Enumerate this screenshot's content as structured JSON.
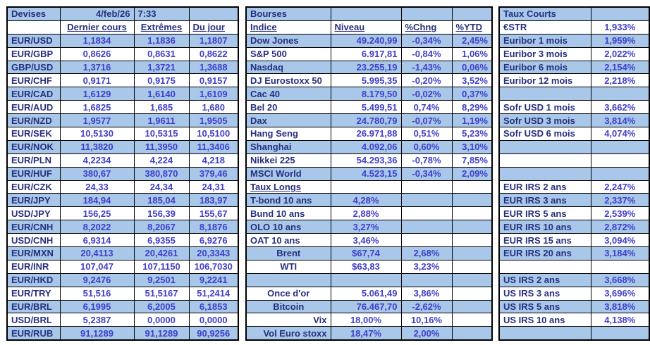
{
  "meta": {
    "date": "4/feb/26",
    "time": "7:33"
  },
  "colors": {
    "band_blue": "#a8c7e9",
    "label_navy": "#262f7e",
    "value_blue": "#3f3fca",
    "border": "#000000"
  },
  "devises": {
    "title": "Devises",
    "headers": [
      "Dernier cours",
      "Extrêmes",
      "Du jour"
    ],
    "rows": [
      [
        {
          "t": "Devises",
          "n": "section-title-devises"
        },
        {
          "t": "4/feb/26",
          "al": "r",
          "n": "date"
        },
        {
          "t": "7:33",
          "al": "l",
          "n": "time"
        },
        ""
      ],
      [
        "",
        {
          "t": "Dernier cours",
          "al": "c",
          "u": 1,
          "n": "col-header"
        },
        {
          "t": "Extrêmes",
          "al": "c",
          "u": 1,
          "n": "col-header"
        },
        {
          "t": "Du jour",
          "al": "l",
          "u": 1,
          "n": "col-header"
        }
      ],
      [
        "EUR/USD",
        "1,1834",
        "1,1836",
        "1,1807"
      ],
      [
        "EUR/GBP",
        "0,8626",
        "0,8631",
        "0,8622"
      ],
      [
        "GBP/USD",
        "1,3716",
        "1,3721",
        "1,3688"
      ],
      [
        "EUR/CHF",
        "0,9171",
        "0,9175",
        "0,9157"
      ],
      [
        "EUR/CAD",
        "1,6129",
        "1,6140",
        "1,6109"
      ],
      [
        "EUR/AUD",
        "1,6825",
        "1,685",
        "1,680"
      ],
      [
        "EUR/NZD",
        "1,9577",
        "1,9611",
        "1,9505"
      ],
      [
        "EUR/SEK",
        "10,5130",
        "10,5315",
        "10,5100"
      ],
      [
        "EUR/NOK",
        "11,3820",
        "11,3950",
        "11,3406"
      ],
      [
        "EUR/PLN",
        "4,2234",
        "4,224",
        "4,218"
      ],
      [
        "EUR/HUF",
        "380,67",
        "380,870",
        "379,46"
      ],
      [
        "EUR/CZK",
        "24,33",
        "24,34",
        "24,31"
      ],
      [
        "EUR/JPY",
        "184,94",
        "185,04",
        "183,97"
      ],
      [
        "USD/JPY",
        "156,25",
        "156,39",
        "155,67"
      ],
      [
        "EUR/CNH",
        "8,2022",
        "8,2067",
        "8,1876"
      ],
      [
        "USD/CNH",
        "6,9314",
        "6,9355",
        "6,9276"
      ],
      [
        "EUR/MXN",
        "20,4113",
        "20,4261",
        "20,3343"
      ],
      [
        "EUR/INR",
        "107,047",
        "107,1150",
        "106,7030"
      ],
      [
        "EUR/HKD",
        "9,2476",
        "9,2501",
        "9,2241"
      ],
      [
        "EUR/TRY",
        "51,516",
        "51,5167",
        "51,2414"
      ],
      [
        "EUR/BRL",
        "6,1995",
        "6,2005",
        "6,1853"
      ],
      [
        "USD/BRL",
        "5,2387",
        "0,0000",
        "0,0000"
      ],
      [
        "EUR/RUB",
        "91,1289",
        "91,1289",
        "90,9256"
      ]
    ]
  },
  "bourses": {
    "title": "Bourses",
    "headers": [
      "Indice",
      "Niveau",
      "%Chng",
      "%YTD"
    ],
    "rows": [
      [
        {
          "t": "Bourses",
          "n": "section-title-bourses"
        },
        "",
        "",
        ""
      ],
      [
        {
          "t": "Indice",
          "u": 1,
          "n": "col-header"
        },
        {
          "t": "Niveau",
          "al": "l",
          "u": 1,
          "n": "col-header"
        },
        {
          "t": "%Chng",
          "al": "l",
          "u": 1,
          "n": "col-header"
        },
        {
          "t": "%YTD",
          "al": "l",
          "u": 1,
          "n": "col-header"
        }
      ],
      [
        "Dow Jones",
        "49.240,99",
        "-0,34%",
        "2,45%"
      ],
      [
        "S&P 500",
        "6.917,81",
        "-0,84%",
        "1,06%"
      ],
      [
        "Nasdaq",
        "23.255,19",
        "-1,43%",
        "0,06%"
      ],
      [
        "DJ Eurostoxx 50",
        "5.995,35",
        "-0,20%",
        "3,52%"
      ],
      [
        "Cac 40",
        "8.179,50",
        "-0,02%",
        "0,37%"
      ],
      [
        "Bel 20",
        "5.499,51",
        "0,74%",
        "8,29%"
      ],
      [
        "Dax",
        "24.780,79",
        "-0,07%",
        "1,19%"
      ],
      [
        "Hang Seng",
        "26.971,88",
        "0,51%",
        "5,23%"
      ],
      [
        "Shanghai",
        "4.092,06",
        "0,60%",
        "3,10%"
      ],
      [
        "Nikkei 225",
        "54.293,36",
        "-0,78%",
        "7,85%"
      ],
      [
        "MSCI World",
        "4.523,15",
        "-0,34%",
        "2,09%"
      ],
      [
        {
          "t": "Taux Longs",
          "u": 1,
          "n": "section-title-taux-longs"
        },
        "",
        "",
        ""
      ],
      [
        "T-bond 10 ans",
        {
          "t": "4,28%",
          "al": "c"
        },
        "",
        ""
      ],
      [
        "Bund 10 ans",
        {
          "t": "2,88%",
          "al": "c"
        },
        "",
        ""
      ],
      [
        "OLO 10 ans",
        {
          "t": "3,27%",
          "al": "c"
        },
        "",
        ""
      ],
      [
        "OAT 10 ans",
        {
          "t": "3,46%",
          "al": "c"
        },
        "",
        ""
      ],
      [
        {
          "t": "Brent",
          "al": "c"
        },
        {
          "t": "$67,74",
          "al": "c"
        },
        "2,68%",
        ""
      ],
      [
        {
          "t": "WTI",
          "al": "c"
        },
        {
          "t": "$63,83",
          "al": "c"
        },
        "3,23%",
        ""
      ],
      [
        "",
        "",
        "",
        ""
      ],
      [
        {
          "t": "Once d'or",
          "al": "c"
        },
        "5.061,49",
        "3,86%",
        ""
      ],
      [
        {
          "t": "Bitcoin",
          "al": "c"
        },
        "76.467,70",
        "-2,62%",
        ""
      ],
      [
        {
          "t": "Vix",
          "al": "r"
        },
        {
          "t": "18,00%",
          "al": "c"
        },
        "10,16%",
        ""
      ],
      [
        {
          "t": "Vol Euro stoxx",
          "al": "r"
        },
        {
          "t": "18,47%",
          "al": "c"
        },
        "2,00%",
        ""
      ]
    ]
  },
  "taux_courts": {
    "title": "Taux Courts",
    "rows": [
      [
        {
          "t": "Taux Courts",
          "n": "section-title-taux-courts"
        },
        ""
      ],
      [
        "€STR",
        "1,933%"
      ],
      [
        "Euribor 1 mois",
        "1,959%"
      ],
      [
        "Euribor 3 mois",
        "2,022%"
      ],
      [
        "Euribor 6 mois",
        "2,154%"
      ],
      [
        "Euribor 12 mois",
        "2,218%"
      ],
      [
        "",
        ""
      ],
      [
        "Sofr USD 1 mois",
        "3,662%"
      ],
      [
        "Sofr USD 3 mois",
        "3,814%"
      ],
      [
        "Sofr USD 6 mois",
        "4,074%"
      ],
      [
        "",
        ""
      ],
      [
        "",
        ""
      ],
      [
        "",
        ""
      ],
      [
        "EUR IRS 2 ans",
        "2,247%"
      ],
      [
        "EUR IRS 3 ans",
        "2,337%"
      ],
      [
        "EUR IRS 5 ans",
        "2,539%"
      ],
      [
        "EUR IRS 10 ans",
        "2,872%"
      ],
      [
        "EUR IRS 15 ans",
        "3,094%"
      ],
      [
        "EUR IRS 20 ans",
        "3,184%"
      ],
      [
        "",
        ""
      ],
      [
        "US IRS 2 ans",
        "3,668%"
      ],
      [
        "US IRS 3 ans",
        "3,696%"
      ],
      [
        "US IRS 5 ans",
        "3,818%"
      ],
      [
        "US IRS 10 ans",
        "4,138%"
      ],
      [
        "",
        ""
      ]
    ]
  }
}
